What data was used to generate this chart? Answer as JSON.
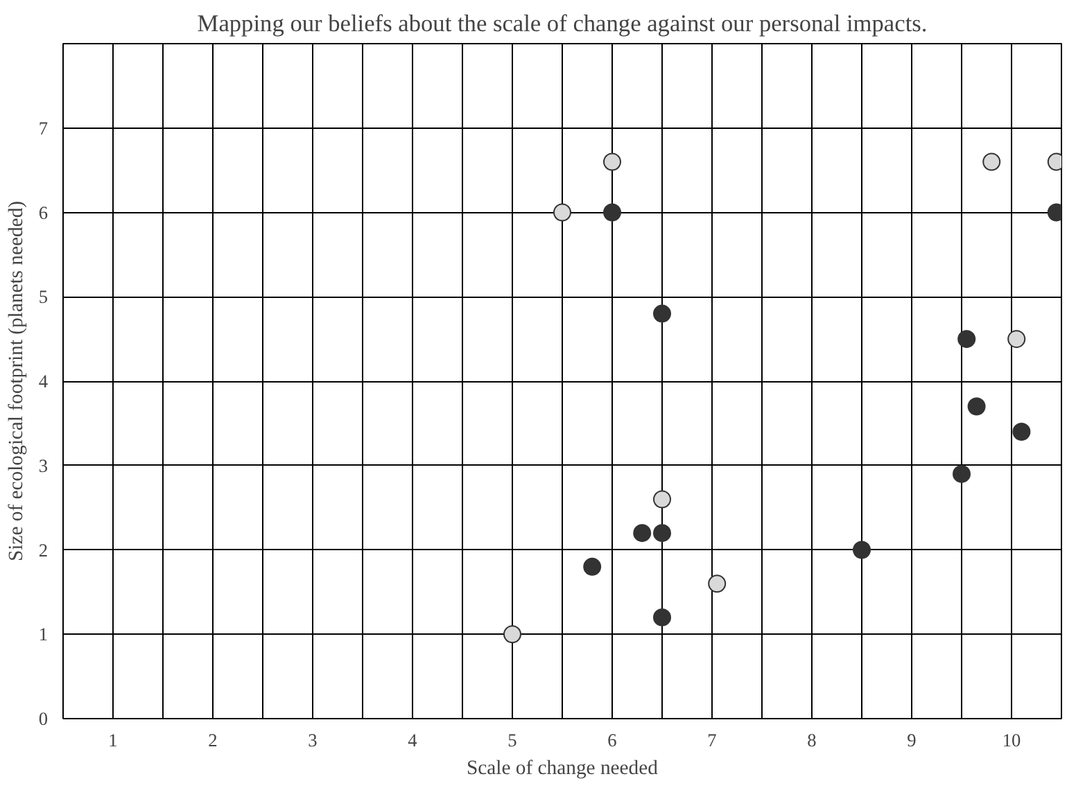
{
  "chart_data": {
    "type": "scatter",
    "title": "Mapping our beliefs about the scale of change against our personal impacts.",
    "xlabel": "Scale of change needed",
    "ylabel": "Size of ecological footprint (planets needed)",
    "xlim": [
      0.5,
      10.5
    ],
    "ylim": [
      0,
      8
    ],
    "xticks": [
      {
        "value": 0.5,
        "label": null
      },
      1,
      {
        "value": 1.5,
        "label": null
      },
      2,
      {
        "value": 2.5,
        "label": null
      },
      3,
      {
        "value": 3.5,
        "label": null
      },
      4,
      {
        "value": 4.5,
        "label": null
      },
      5,
      {
        "value": 5.5,
        "label": null
      },
      6,
      {
        "value": 6.5,
        "label": null
      },
      7,
      {
        "value": 7.5,
        "label": null
      },
      8,
      {
        "value": 8.5,
        "label": null
      },
      9,
      {
        "value": 9.5,
        "label": null
      },
      10,
      {
        "value": 10.5,
        "label": null
      }
    ],
    "yticks": [
      0,
      1,
      2,
      3,
      4,
      5,
      6,
      7
    ],
    "grid": true,
    "marker": "circle",
    "series": [
      {
        "color": "#d9d9d9",
        "x": [
          6.0,
          5.5,
          9.8,
          10.45,
          10.05,
          6.5,
          7.05,
          5.0
        ],
        "values": [
          6.6,
          6.0,
          6.6,
          6.6,
          4.5,
          2.6,
          1.6,
          1.0
        ]
      },
      {
        "color": "#333333",
        "x": [
          6.0,
          10.45,
          6.5,
          9.55,
          9.65,
          10.1,
          9.5,
          8.5,
          6.3,
          6.5,
          5.8,
          6.5
        ],
        "values": [
          6.0,
          6.0,
          4.8,
          4.5,
          3.7,
          3.4,
          2.9,
          2.0,
          2.2,
          2.2,
          1.8,
          1.2
        ]
      }
    ]
  }
}
